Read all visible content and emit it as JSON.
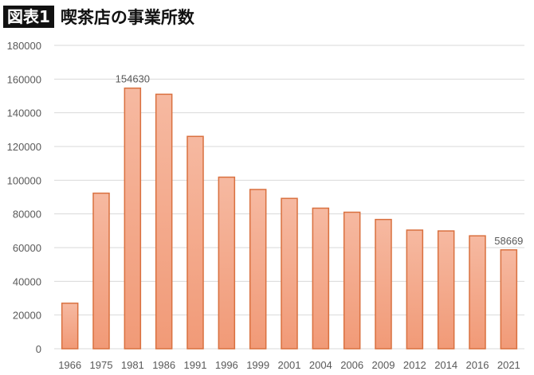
{
  "header": {
    "badge": "図表1",
    "title": "喫茶店の事業所数"
  },
  "chart_data": {
    "type": "bar",
    "title": "喫茶店の事業所数",
    "xlabel": "",
    "ylabel": "",
    "ylim": [
      0,
      180000
    ],
    "yticks": [
      0,
      20000,
      40000,
      60000,
      80000,
      100000,
      120000,
      140000,
      160000,
      180000
    ],
    "grid": true,
    "categories": [
      "1966",
      "1975",
      "1981",
      "1986",
      "1991",
      "1996",
      "1999",
      "2001",
      "2004",
      "2006",
      "2009",
      "2012",
      "2014",
      "2016",
      "2021"
    ],
    "values": [
      27000,
      92300,
      154630,
      151000,
      126000,
      101800,
      94500,
      89200,
      83400,
      81000,
      76700,
      70400,
      69900,
      67000,
      58669
    ],
    "data_labels": [
      {
        "category": "1981",
        "text": "154630"
      },
      {
        "category": "2021",
        "text": "58669"
      }
    ],
    "colors": {
      "bar_top": "#f6b9a1",
      "bar_bottom": "#f19a77",
      "bar_stroke": "#d9703f",
      "grid": "#d9d9d9",
      "text": "#595959"
    }
  }
}
